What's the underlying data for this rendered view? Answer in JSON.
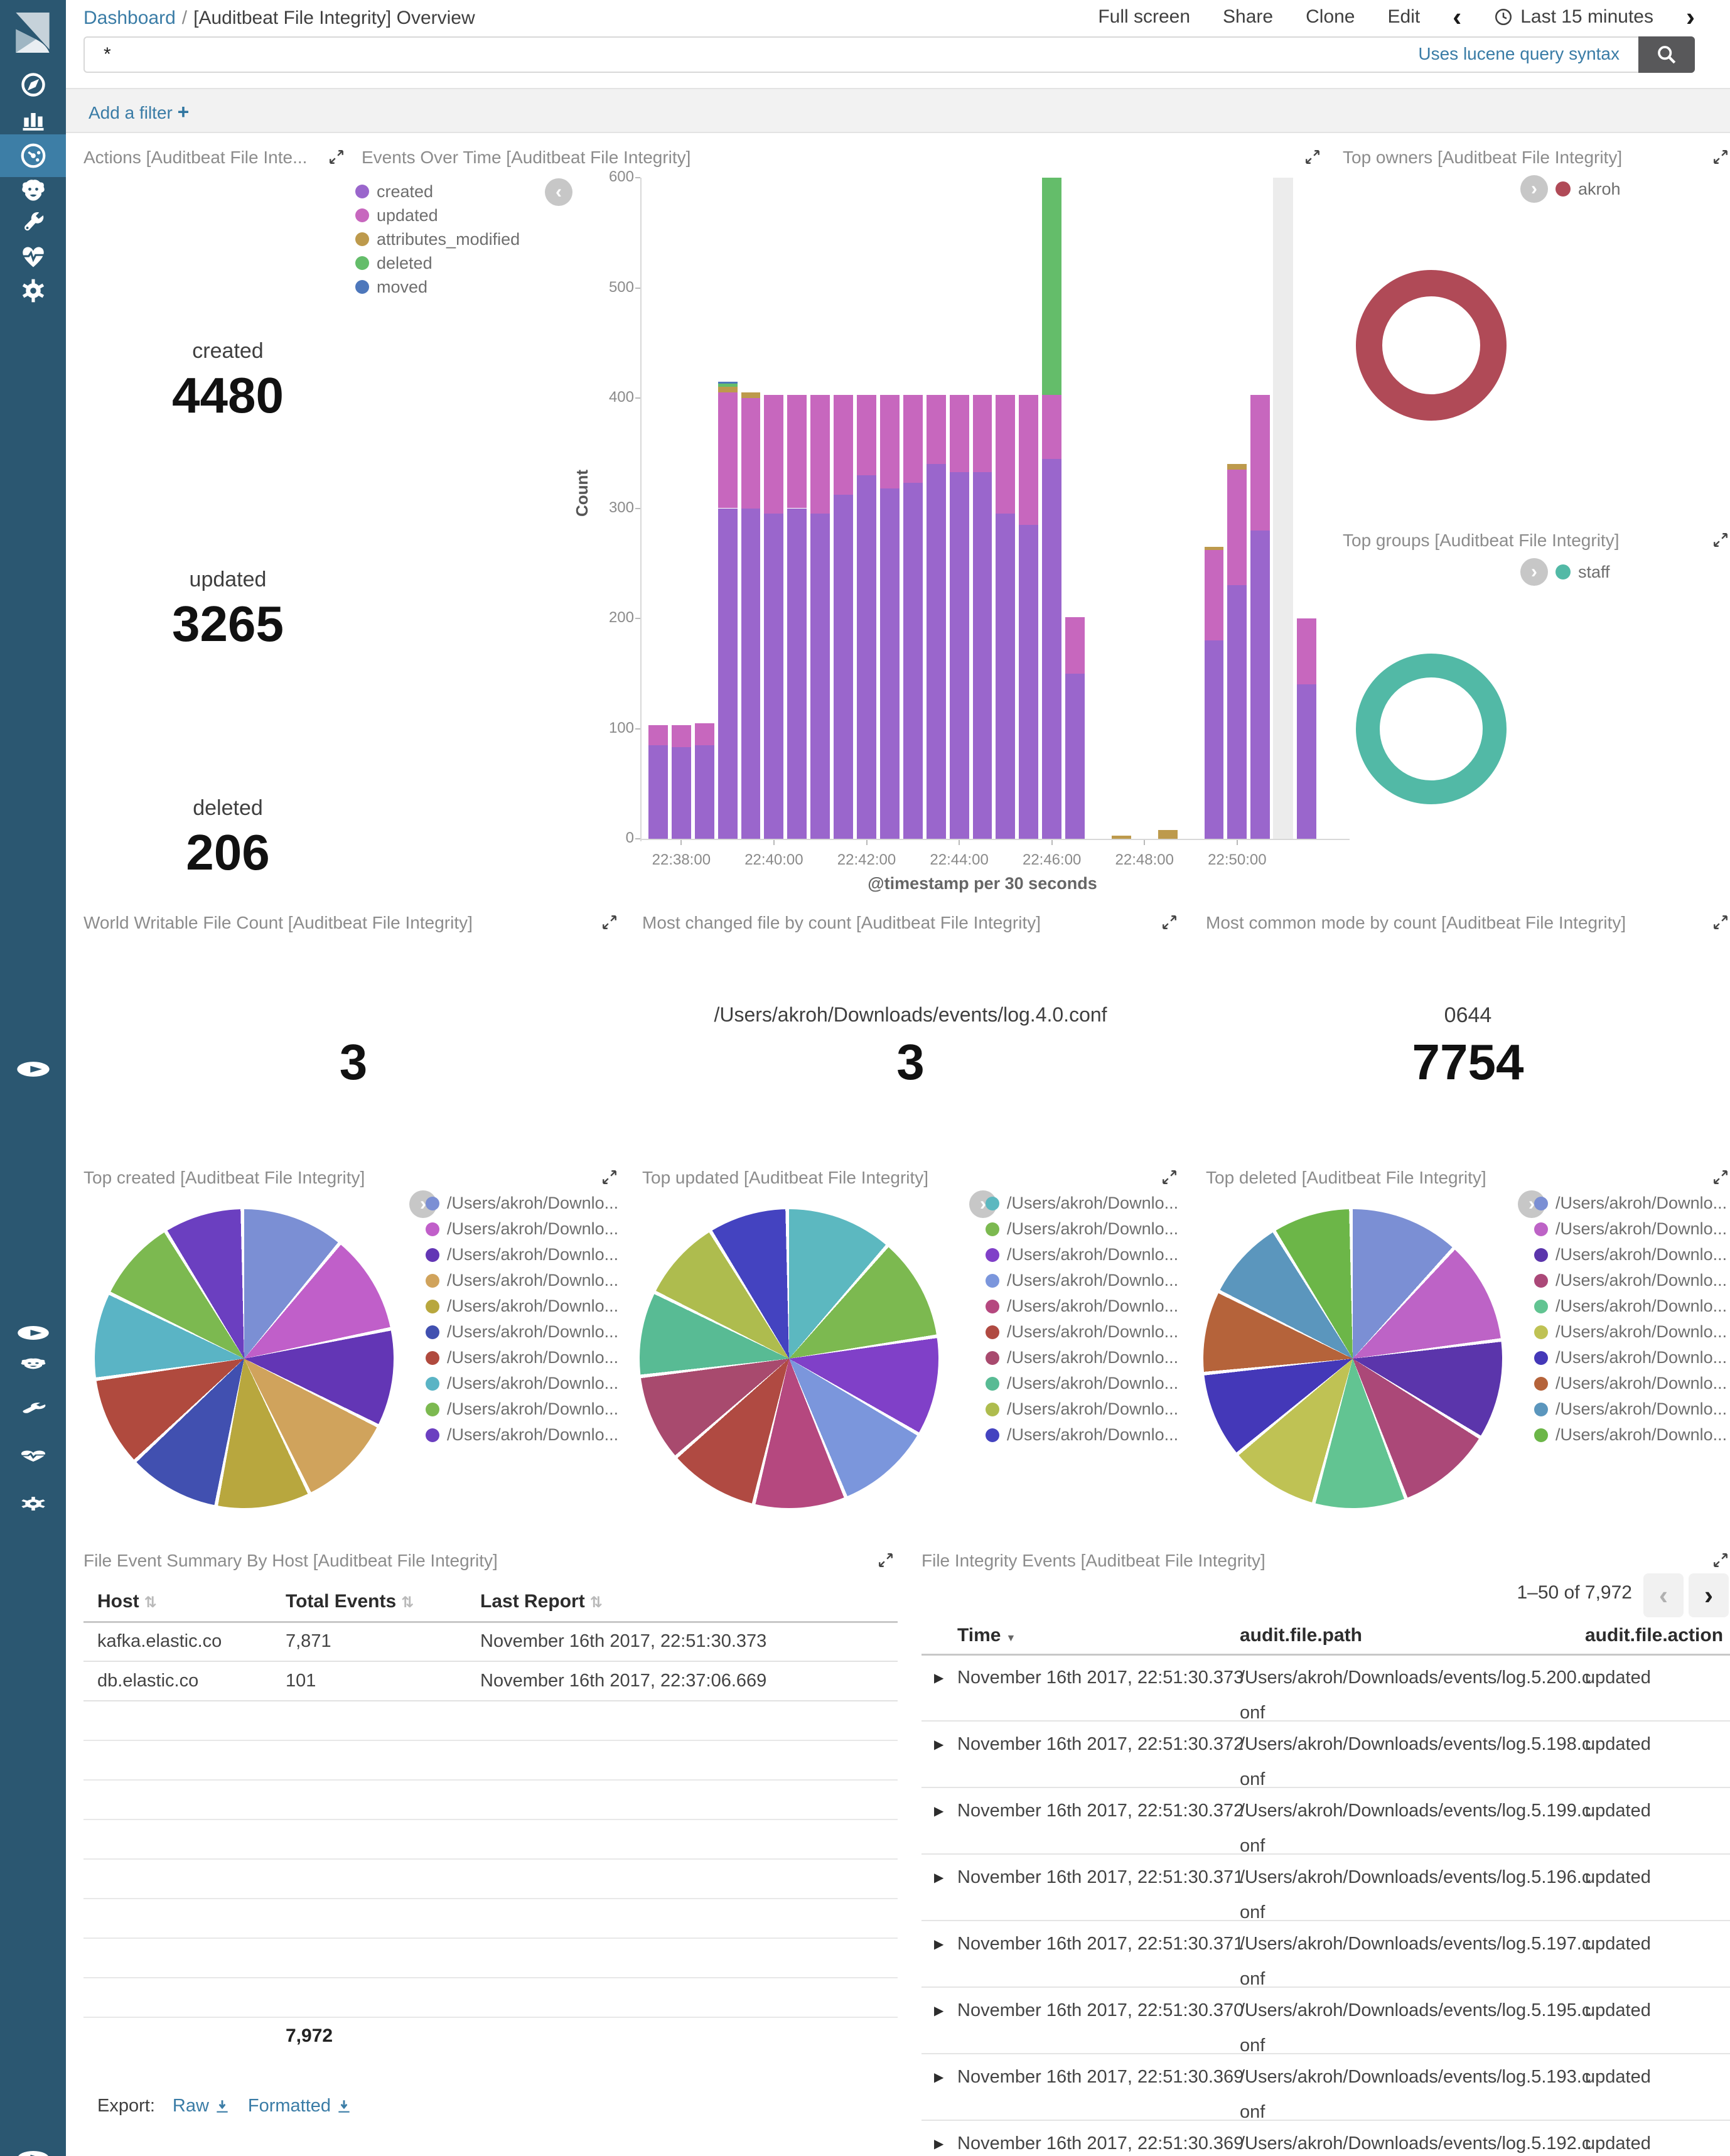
{
  "app": {
    "breadcrumb": {
      "root": "Dashboard",
      "sep": "/",
      "title": "[Auditbeat File Integrity] Overview"
    },
    "menu": [
      "Full screen",
      "Share",
      "Clone",
      "Edit"
    ],
    "time_picker": {
      "prev": "‹",
      "label": "Last 15 minutes",
      "next": "›"
    },
    "search": {
      "value": "*",
      "hint": "Uses lucene query syntax"
    },
    "filter": {
      "label": "Add a filter",
      "plus": "+"
    },
    "accent_color": "#3a7ca6",
    "sidebar_icons": [
      "kibana-logo",
      "compass-icon",
      "bar-chart-icon",
      "dashboard-icon",
      "lion-icon",
      "wrench-icon",
      "heartbeat-icon",
      "gear-icon",
      "play-circle-icon"
    ]
  },
  "panels": {
    "actions": {
      "title": "Actions [Auditbeat File Inte...",
      "metrics": [
        {
          "label": "created",
          "value": "4480"
        },
        {
          "label": "updated",
          "value": "3265"
        },
        {
          "label": "deleted",
          "value": "206"
        }
      ]
    },
    "events": {
      "title": "Events Over Time [Auditbeat File Integrity]"
    },
    "top_owners": {
      "title": "Top owners [Auditbeat File Integrity]",
      "legend": "akroh",
      "color": "#b04a57"
    },
    "top_groups": {
      "title": "Top groups [Auditbeat File Integrity]",
      "legend": "staff",
      "color": "#52b9a6"
    },
    "world_writable": {
      "title": "World Writable File Count [Auditbeat File Integrity]",
      "value": "3"
    },
    "most_changed": {
      "title": "Most changed file by count [Auditbeat File Integrity]",
      "label": "/Users/akroh/Downloads/events/log.4.0.conf",
      "value": "3"
    },
    "most_common_mode": {
      "title": "Most common mode by count [Auditbeat File Integrity]",
      "label": "0644",
      "value": "7754"
    },
    "top_created": {
      "title": "Top created [Auditbeat File Integrity]"
    },
    "top_updated": {
      "title": "Top updated [Auditbeat File Integrity]"
    },
    "top_deleted": {
      "title": "Top deleted [Auditbeat File Integrity]"
    },
    "summary_table": {
      "title": "File Event Summary By Host [Auditbeat File Integrity]",
      "headers": [
        "Host",
        "Total Events",
        "Last Report"
      ],
      "rows": [
        [
          "kafka.elastic.co",
          "7,871",
          "November 16th 2017, 22:51:30.373"
        ],
        [
          "db.elastic.co",
          "101",
          "November 16th 2017, 22:37:06.669"
        ]
      ],
      "total": "7,972",
      "export_label": "Export:",
      "export_raw": "Raw",
      "export_formatted": "Formatted"
    },
    "events_table": {
      "title": "File Integrity Events [Auditbeat File Integrity]",
      "pagination": "1–50 of 7,972",
      "prev": "‹",
      "next": "›",
      "headers": [
        "Time",
        "audit.file.path",
        "audit.file.action"
      ],
      "rows": [
        {
          "time": "November 16th 2017, 22:51:30.373",
          "path1": "/Users/akroh/Downloads/events/log.5.200.c",
          "path2": "onf",
          "action": "updated"
        },
        {
          "time": "November 16th 2017, 22:51:30.372",
          "path1": "/Users/akroh/Downloads/events/log.5.198.c",
          "path2": "onf",
          "action": "updated"
        },
        {
          "time": "November 16th 2017, 22:51:30.372",
          "path1": "/Users/akroh/Downloads/events/log.5.199.c",
          "path2": "onf",
          "action": "updated"
        },
        {
          "time": "November 16th 2017, 22:51:30.371",
          "path1": "/Users/akroh/Downloads/events/log.5.196.c",
          "path2": "onf",
          "action": "updated"
        },
        {
          "time": "November 16th 2017, 22:51:30.371",
          "path1": "/Users/akroh/Downloads/events/log.5.197.c",
          "path2": "onf",
          "action": "updated"
        },
        {
          "time": "November 16th 2017, 22:51:30.370",
          "path1": "/Users/akroh/Downloads/events/log.5.195.c",
          "path2": "onf",
          "action": "updated"
        },
        {
          "time": "November 16th 2017, 22:51:30.369",
          "path1": "/Users/akroh/Downloads/events/log.5.193.c",
          "path2": "onf",
          "action": "updated"
        },
        {
          "time": "November 16th 2017, 22:51:30.369",
          "path1": "/Users/akroh/Downloads/events/log.5.192.c",
          "path2": "onf",
          "action": "updated"
        }
      ]
    }
  },
  "chart_data": [
    {
      "id": "events_over_time",
      "type": "bar",
      "stacked": true,
      "title": "Events Over Time [Auditbeat File Integrity]",
      "xlabel": "@timestamp per 30 seconds",
      "ylabel": "Count",
      "ylim": [
        0,
        600
      ],
      "yticks": [
        0,
        100,
        200,
        300,
        400,
        500,
        600
      ],
      "xtick_labels": [
        "22:38:00",
        "22:40:00",
        "22:42:00",
        "22:44:00",
        "22:46:00",
        "22:48:00",
        "22:50:00"
      ],
      "x": [
        "22:37:30",
        "22:38:00",
        "22:38:30",
        "22:39:00",
        "22:39:30",
        "22:40:00",
        "22:40:30",
        "22:41:00",
        "22:41:30",
        "22:42:00",
        "22:42:30",
        "22:43:00",
        "22:43:30",
        "22:44:00",
        "22:44:30",
        "22:45:00",
        "22:45:30",
        "22:46:00",
        "22:46:30",
        "22:47:00",
        "22:47:30",
        "22:48:00",
        "22:48:30",
        "22:49:00",
        "22:49:30",
        "22:50:00",
        "22:50:30",
        "22:51:00",
        "22:51:30"
      ],
      "series": [
        {
          "name": "created",
          "color": "#9a66cc",
          "values": [
            85,
            83,
            85,
            300,
            300,
            295,
            300,
            295,
            312,
            330,
            318,
            323,
            340,
            333,
            333,
            295,
            285,
            345,
            150,
            0,
            0,
            0,
            0,
            0,
            180,
            230,
            280,
            0,
            140
          ]
        },
        {
          "name": "updated",
          "color": "#c767be",
          "values": [
            18,
            20,
            20,
            105,
            100,
            108,
            103,
            108,
            91,
            73,
            85,
            80,
            63,
            70,
            70,
            108,
            118,
            58,
            51,
            0,
            0,
            0,
            0,
            0,
            82,
            105,
            123,
            0,
            60
          ]
        },
        {
          "name": "attributes_modified",
          "color": "#bd9a4c",
          "values": [
            0,
            0,
            0,
            5,
            5,
            0,
            0,
            0,
            0,
            0,
            0,
            0,
            0,
            0,
            0,
            0,
            0,
            0,
            0,
            0,
            3,
            0,
            8,
            0,
            3,
            5,
            0,
            0,
            0
          ]
        },
        {
          "name": "deleted",
          "color": "#64bd6a",
          "values": [
            0,
            0,
            0,
            3,
            0,
            0,
            0,
            0,
            0,
            0,
            0,
            0,
            0,
            0,
            0,
            0,
            0,
            197,
            0,
            0,
            0,
            0,
            0,
            0,
            0,
            0,
            0,
            0,
            0
          ]
        },
        {
          "name": "moved",
          "color": "#4d77bb",
          "values": [
            0,
            0,
            0,
            2,
            0,
            0,
            0,
            0,
            0,
            0,
            0,
            0,
            0,
            0,
            0,
            0,
            0,
            0,
            0,
            0,
            0,
            0,
            0,
            0,
            0,
            0,
            0,
            0,
            0
          ]
        }
      ],
      "current_time_marker_x": "22:51:00",
      "marker_color": "#ececec",
      "legend_position": "top-left",
      "grid": false
    },
    {
      "id": "top_owners",
      "type": "pie",
      "donut": true,
      "labels": [
        "akroh"
      ],
      "values": [
        7972
      ],
      "colors": [
        "#b04a57"
      ]
    },
    {
      "id": "top_groups",
      "type": "pie",
      "donut": true,
      "labels": [
        "staff"
      ],
      "values": [
        7972
      ],
      "colors": [
        "#52b9a6"
      ]
    },
    {
      "id": "top_created",
      "type": "pie",
      "labels": [
        "/Users/akroh/Downlo...",
        "/Users/akroh/Downlo...",
        "/Users/akroh/Downlo...",
        "/Users/akroh/Downlo...",
        "/Users/akroh/Downlo...",
        "/Users/akroh/Downlo...",
        "/Users/akroh/Downlo...",
        "/Users/akroh/Downlo...",
        "/Users/akroh/Downlo...",
        "/Users/akroh/Downlo..."
      ],
      "values": [
        11.2,
        10.8,
        10.6,
        10.4,
        10.2,
        10.0,
        9.8,
        9.4,
        9.0,
        8.6
      ],
      "colors": [
        "#7b8fd4",
        "#c05fc9",
        "#6336b5",
        "#d0a35c",
        "#b8a73e",
        "#4150b0",
        "#b04a3e",
        "#5ab4c5",
        "#7cb950",
        "#6b3fc0"
      ]
    },
    {
      "id": "top_updated",
      "type": "pie",
      "labels": [
        "/Users/akroh/Downlo...",
        "/Users/akroh/Downlo...",
        "/Users/akroh/Downlo...",
        "/Users/akroh/Downlo...",
        "/Users/akroh/Downlo...",
        "/Users/akroh/Downlo...",
        "/Users/akroh/Downlo...",
        "/Users/akroh/Downlo...",
        "/Users/akroh/Downlo...",
        "/Users/akroh/Downlo..."
      ],
      "values": [
        11.6,
        11.2,
        10.8,
        10.4,
        10.0,
        9.8,
        9.5,
        9.2,
        8.9,
        8.6
      ],
      "colors": [
        "#5cb8c0",
        "#7cb950",
        "#8040c8",
        "#7b96dc",
        "#b5487f",
        "#b04a42",
        "#a84a6e",
        "#58bb94",
        "#aebc4e",
        "#4443c0"
      ]
    },
    {
      "id": "top_deleted",
      "type": "pie",
      "labels": [
        "/Users/akroh/Downlo...",
        "/Users/akroh/Downlo...",
        "/Users/akroh/Downlo...",
        "/Users/akroh/Downlo...",
        "/Users/akroh/Downlo...",
        "/Users/akroh/Downlo...",
        "/Users/akroh/Downlo...",
        "/Users/akroh/Downlo...",
        "/Users/akroh/Downlo...",
        "/Users/akroh/Downlo..."
      ],
      "values": [
        12.0,
        11.2,
        10.8,
        10.4,
        10.0,
        9.8,
        9.4,
        9.0,
        8.8,
        8.6
      ],
      "colors": [
        "#7b8fd4",
        "#bd63c6",
        "#5b35ab",
        "#ab4878",
        "#62c492",
        "#bfc254",
        "#4438b8",
        "#b5633a",
        "#5b96bd",
        "#6cb648"
      ]
    }
  ]
}
